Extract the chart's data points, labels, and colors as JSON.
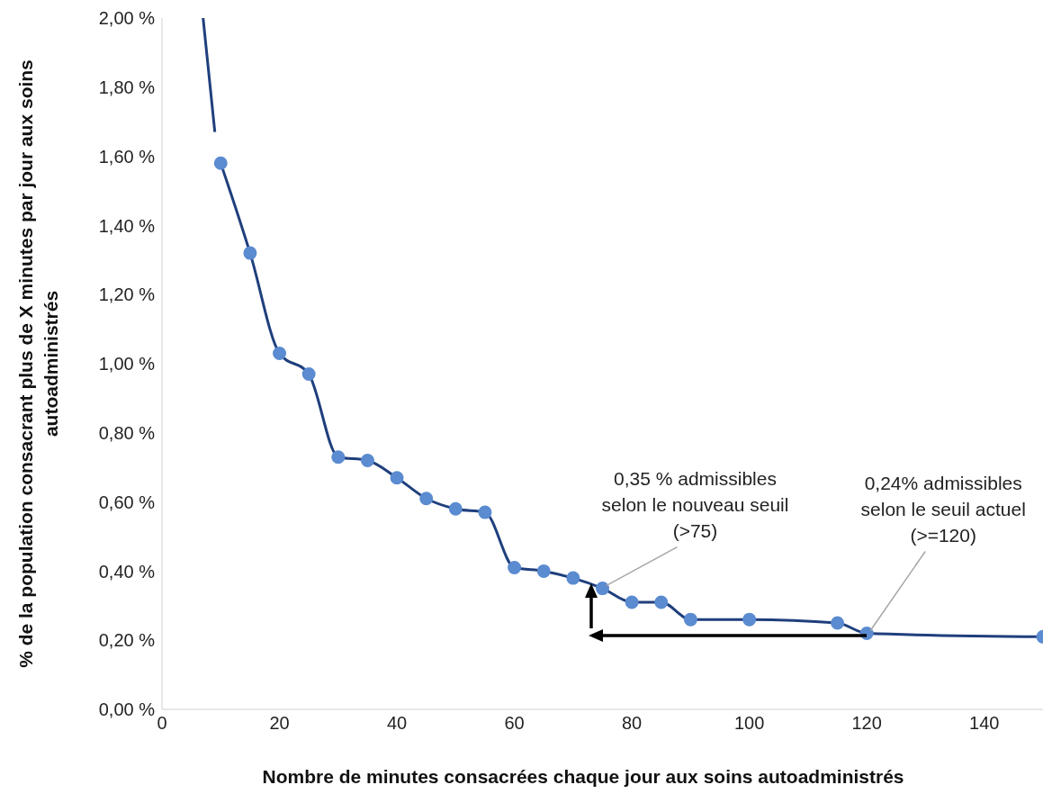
{
  "chart_data": {
    "type": "line",
    "xlabel": "Nombre de minutes consacrées chaque jour aux soins autoadministrés",
    "ylabel": "% de la population consacrant plus de X minutes par jour aux soins autoadministrés",
    "xlim": [
      0,
      150
    ],
    "xticks": [
      0,
      20,
      40,
      60,
      80,
      100,
      120,
      140
    ],
    "ylim": [
      0,
      2
    ],
    "yticks": [
      {
        "value": 0,
        "label": "0,00 %"
      },
      {
        "value": 0.2,
        "label": "0,20 %"
      },
      {
        "value": 0.4,
        "label": "0,40 %"
      },
      {
        "value": 0.6,
        "label": "0,60 %"
      },
      {
        "value": 0.8,
        "label": "0,80 %"
      },
      {
        "value": 1,
        "label": "1,00 %"
      },
      {
        "value": 1.2,
        "label": "1,20 %"
      },
      {
        "value": 1.4,
        "label": "1,40 %"
      },
      {
        "value": 1.6,
        "label": "1,60 %"
      },
      {
        "value": 1.8,
        "label": "1,80 %"
      },
      {
        "value": 2,
        "label": "2,00 %"
      }
    ],
    "grid": false,
    "marker": "circle",
    "line_style": "solid",
    "series": [
      {
        "color": "#1f3f7d",
        "marker": "none",
        "x": [
          7,
          9
        ],
        "values": [
          2.0,
          1.67
        ]
      },
      {
        "color": "#1f3f7d",
        "x": [
          10,
          15,
          20,
          25,
          30,
          35,
          40,
          45,
          50,
          55,
          60,
          65,
          70,
          75,
          80,
          85,
          90,
          100,
          115,
          120,
          150
        ],
        "values": [
          1.58,
          1.32,
          1.03,
          0.97,
          0.73,
          0.72,
          0.67,
          0.61,
          0.58,
          0.57,
          0.41,
          0.4,
          0.38,
          0.35,
          0.31,
          0.31,
          0.26,
          0.26,
          0.25,
          0.22,
          0.21
        ]
      }
    ],
    "annotations": [
      {
        "text": "0,35 % admissibles selon le nouveau seuil (>75)",
        "x": 75,
        "y": 0.35
      },
      {
        "text": "0,24% admissibles selon le seuil actuel (>=120)",
        "x": 120,
        "y": 0.22
      }
    ]
  }
}
